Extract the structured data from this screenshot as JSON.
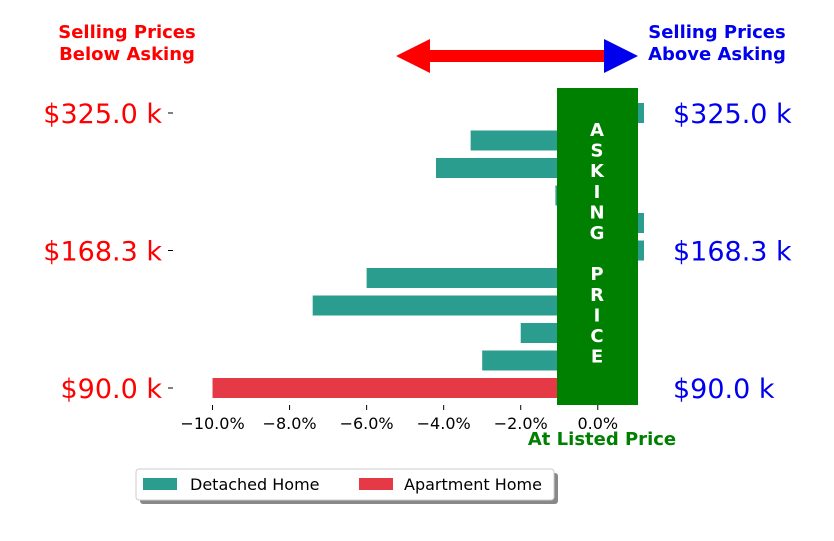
{
  "colors": {
    "detached": "#2a9d8f",
    "apartment": "#e63946",
    "below": "#ff0000",
    "above": "#0000ee",
    "asking": "#008000"
  },
  "header": {
    "below_label_line1": "Selling Prices",
    "below_label_line2": "Below Asking",
    "above_label_line1": "Selling Prices",
    "above_label_line2": "Above Asking"
  },
  "asking_band": {
    "letters": [
      "A",
      "S",
      "K",
      "I",
      "N",
      "G",
      "",
      "P",
      "R",
      "I",
      "C",
      "E"
    ]
  },
  "chart_data": {
    "type": "bar",
    "orientation": "horizontal",
    "xlabel": "At Listed Price",
    "xlim": [
      -11.0,
      1.2
    ],
    "x_ticks": [
      -10,
      -8,
      -6,
      -4,
      -2,
      0
    ],
    "x_tick_labels": [
      "−10.0%",
      "−8.0%",
      "−6.0%",
      "−4.0%",
      "−2.0%",
      "0.0%"
    ],
    "y_tick_labels_left": [
      "$325.0 k",
      "$168.3 k",
      "$90.0 k"
    ],
    "y_tick_labels_right": [
      "$325.0 k",
      "$168.3 k",
      "$90.0 k"
    ],
    "y_tick_rows": [
      0,
      5,
      10
    ],
    "series": [
      {
        "name": "Detached Home",
        "values": [
          1.2,
          -3.3,
          -4.2,
          -1.1,
          1.2,
          1.2,
          -6.0,
          -7.4,
          -2.0,
          -3.0
        ]
      },
      {
        "name": "Apartment Home",
        "values": [
          null,
          null,
          null,
          null,
          null,
          null,
          null,
          null,
          null,
          null,
          -10.0
        ]
      }
    ],
    "grid": false,
    "legend_position": "bottom-center"
  }
}
